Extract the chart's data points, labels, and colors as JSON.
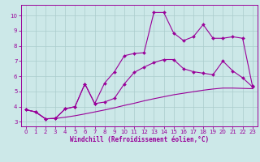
{
  "bg_color": "#cce8e8",
  "line_color": "#990099",
  "grid_color": "#aacccc",
  "xlabel": "Windchill (Refroidissement éolien,°C)",
  "xlim": [
    -0.5,
    23.5
  ],
  "ylim": [
    2.7,
    10.7
  ],
  "xticks": [
    0,
    1,
    2,
    3,
    4,
    5,
    6,
    7,
    8,
    9,
    10,
    11,
    12,
    13,
    14,
    15,
    16,
    17,
    18,
    19,
    20,
    21,
    22,
    23
  ],
  "yticks": [
    3,
    4,
    5,
    6,
    7,
    8,
    9,
    10
  ],
  "line1_x": [
    0,
    1,
    2,
    3,
    4,
    5,
    6,
    7,
    8,
    9,
    10,
    11,
    12,
    13,
    14,
    15,
    16,
    17,
    18,
    19,
    20,
    21,
    22,
    23
  ],
  "line1_y": [
    3.8,
    3.65,
    3.2,
    3.22,
    3.3,
    3.4,
    3.52,
    3.65,
    3.78,
    3.92,
    4.08,
    4.22,
    4.38,
    4.52,
    4.65,
    4.78,
    4.88,
    4.98,
    5.08,
    5.16,
    5.22,
    5.22,
    5.2,
    5.18
  ],
  "line2_x": [
    0,
    1,
    2,
    3,
    4,
    5,
    6,
    7,
    8,
    9,
    10,
    11,
    12,
    13,
    14,
    15,
    16,
    17,
    18,
    19,
    20,
    21,
    22,
    23
  ],
  "line2_y": [
    3.8,
    3.65,
    3.2,
    3.22,
    3.85,
    4.0,
    5.5,
    4.2,
    4.3,
    4.55,
    5.5,
    6.25,
    6.6,
    6.9,
    7.1,
    7.1,
    6.5,
    6.3,
    6.2,
    6.1,
    7.0,
    6.35,
    5.9,
    5.3
  ],
  "line3_x": [
    0,
    1,
    2,
    3,
    4,
    5,
    6,
    7,
    8,
    9,
    10,
    11,
    12,
    13,
    14,
    15,
    16,
    17,
    18,
    19,
    20,
    21,
    22,
    23
  ],
  "line3_y": [
    3.8,
    3.65,
    3.2,
    3.22,
    3.85,
    4.0,
    5.5,
    4.2,
    5.55,
    6.3,
    7.35,
    7.5,
    7.55,
    10.2,
    10.2,
    8.85,
    8.35,
    8.6,
    9.4,
    8.5,
    8.5,
    8.6,
    8.5,
    5.35
  ]
}
